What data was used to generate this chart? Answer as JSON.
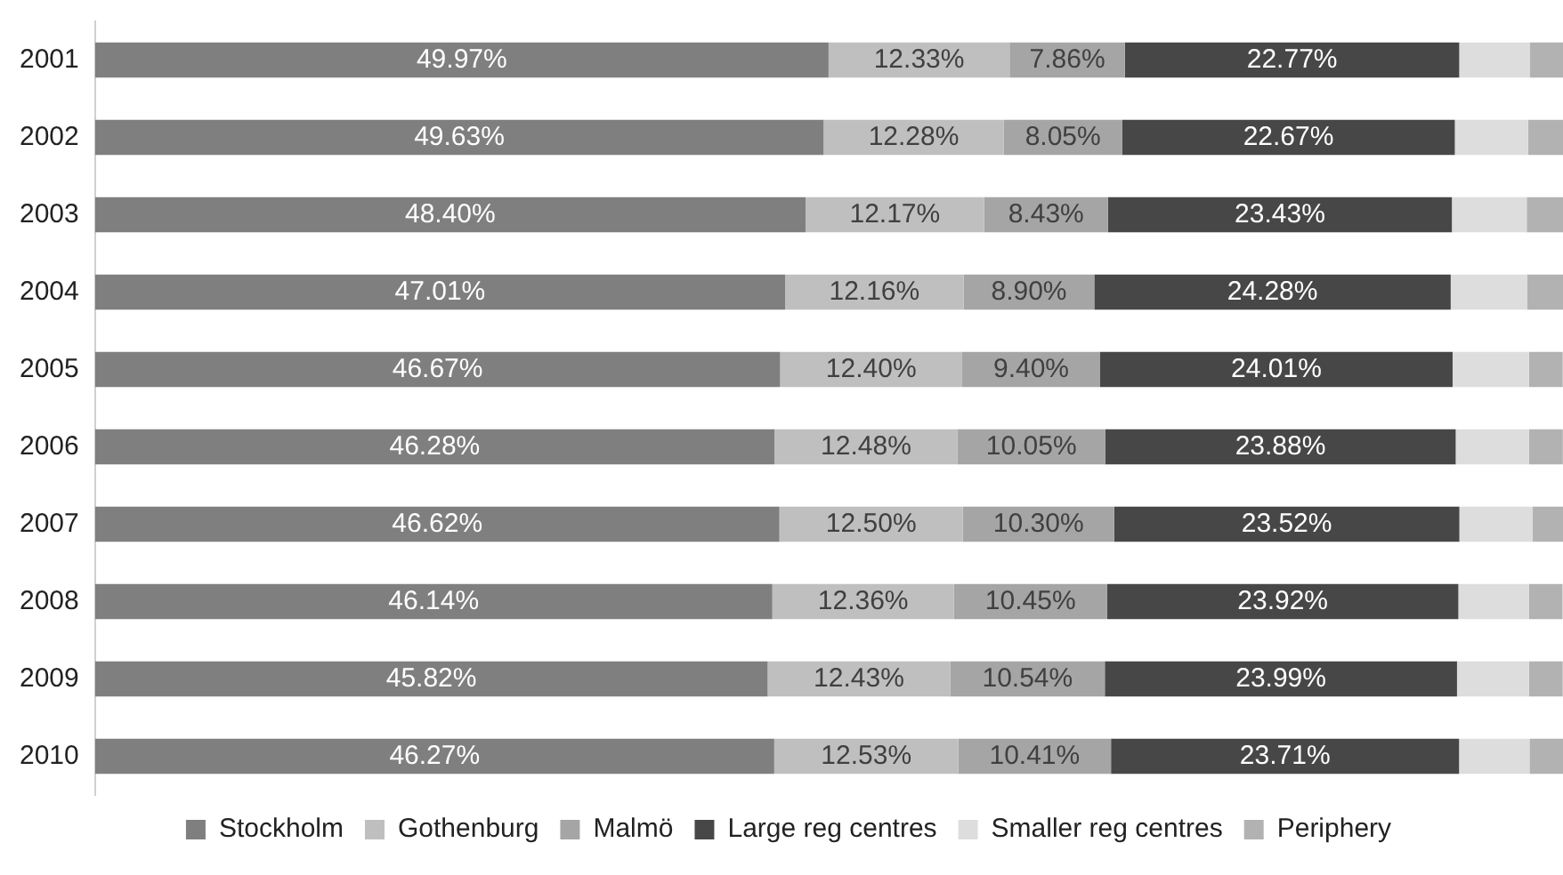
{
  "chart_data": {
    "type": "bar",
    "orientation": "horizontal",
    "stacked": true,
    "categories": [
      "2001",
      "2002",
      "2003",
      "2004",
      "2005",
      "2006",
      "2007",
      "2008",
      "2009",
      "2010"
    ],
    "xlim": [
      0,
      100
    ],
    "tick_labels": "y",
    "grid": false,
    "legend": "bottom",
    "series": [
      {
        "name": "Stockholm",
        "color": "#7f7f7f",
        "values": [
          49.97,
          49.63,
          48.4,
          47.01,
          46.67,
          46.28,
          46.62,
          46.14,
          45.82,
          46.27
        ],
        "value_labels": [
          "49.97%",
          "49.63%",
          "48.40%",
          "47.01%",
          "46.67%",
          "46.28%",
          "46.62%",
          "46.14%",
          "45.82%",
          "46.27%"
        ]
      },
      {
        "name": "Gothenburg",
        "color": "#bfbfbf",
        "values": [
          12.33,
          12.28,
          12.17,
          12.16,
          12.4,
          12.48,
          12.5,
          12.36,
          12.43,
          12.53
        ],
        "value_labels": [
          "12.33%",
          "12.28%",
          "12.17%",
          "12.16%",
          "12.40%",
          "12.48%",
          "12.50%",
          "12.36%",
          "12.43%",
          "12.53%"
        ]
      },
      {
        "name": "Malmö",
        "color": "#a5a5a5",
        "values": [
          7.86,
          8.05,
          8.43,
          8.9,
          9.4,
          10.05,
          10.3,
          10.45,
          10.54,
          10.41
        ],
        "value_labels": [
          "7.86%",
          "8.05%",
          "8.43%",
          "8.90%",
          "9.40%",
          "10.05%",
          "10.30%",
          "10.45%",
          "10.54%",
          "10.41%"
        ]
      },
      {
        "name": "Large reg centres",
        "color": "#474747",
        "values": [
          22.77,
          22.67,
          23.43,
          24.28,
          24.01,
          23.88,
          23.52,
          23.92,
          23.99,
          23.71
        ],
        "value_labels": [
          "22.77%",
          "22.67%",
          "23.43%",
          "24.28%",
          "24.01%",
          "23.88%",
          "23.52%",
          "23.92%",
          "23.99%",
          "23.71%"
        ]
      },
      {
        "name": "Smaller reg centres",
        "color": "#dddddd",
        "values": [
          4.8,
          5.0,
          5.1,
          5.2,
          5.2,
          5.0,
          5.0,
          4.8,
          4.9,
          4.8
        ]
      },
      {
        "name": "Periphery",
        "color": "#b2b2b2",
        "values": [
          2.3,
          2.4,
          2.5,
          2.5,
          2.3,
          2.3,
          2.1,
          2.3,
          2.3,
          2.3
        ]
      }
    ]
  }
}
